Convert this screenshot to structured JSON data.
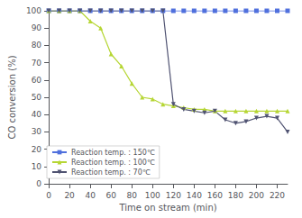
{
  "chart_data": {
    "type": "line",
    "xlabel": "Time on stream (min)",
    "ylabel": "CO conversion (%)",
    "xlim": [
      0,
      230
    ],
    "ylim": [
      0,
      100
    ],
    "xticks": [
      0,
      20,
      40,
      60,
      80,
      100,
      120,
      140,
      160,
      180,
      200,
      220
    ],
    "yticks": [
      0,
      10,
      20,
      30,
      40,
      50,
      60,
      70,
      80,
      90,
      100
    ],
    "x": [
      0,
      10,
      20,
      30,
      40,
      50,
      60,
      70,
      80,
      90,
      100,
      110,
      120,
      130,
      140,
      150,
      160,
      170,
      180,
      190,
      200,
      210,
      220,
      230
    ],
    "series": [
      {
        "name": "Reaction temp. : 150℃",
        "marker": "square",
        "values": [
          100,
          100,
          100,
          100,
          100,
          100,
          100,
          100,
          100,
          100,
          100,
          100,
          100,
          100,
          100,
          100,
          100,
          100,
          100,
          100,
          100,
          100,
          100,
          100
        ]
      },
      {
        "name": "Reaction temp. : 100℃",
        "marker": "triangle-up",
        "values": [
          100,
          100,
          100,
          100,
          94,
          90,
          75,
          68,
          58,
          50,
          49,
          46,
          45,
          44,
          43,
          43,
          42,
          42,
          42,
          42,
          42,
          42,
          42,
          42
        ]
      },
      {
        "name": "Reaction temp. : 70℃",
        "marker": "triangle-down",
        "values": [
          100,
          100,
          100,
          100,
          100,
          100,
          100,
          100,
          100,
          100,
          100,
          100,
          46,
          43,
          42,
          41,
          42,
          37,
          35,
          36,
          38,
          39,
          38,
          30
        ]
      }
    ],
    "legend": "lower left",
    "grid": false
  }
}
